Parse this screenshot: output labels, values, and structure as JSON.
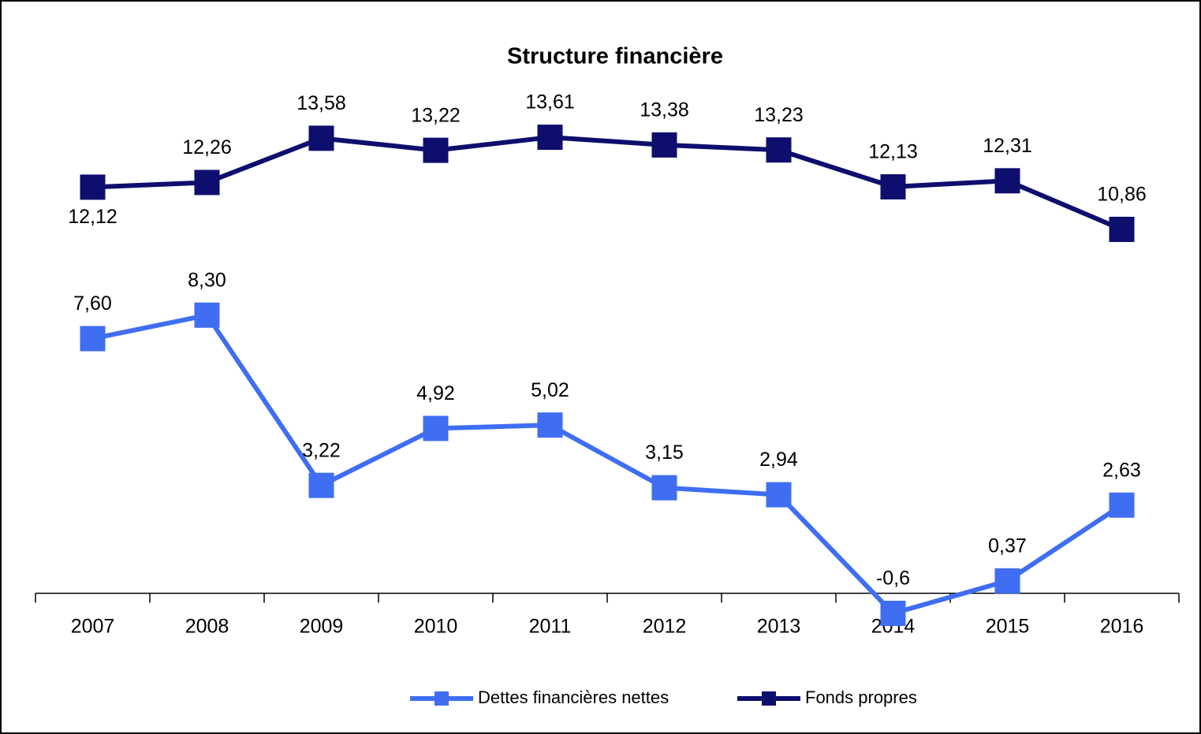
{
  "chart_data": {
    "type": "line",
    "title": "Structure financière",
    "categories": [
      "2007",
      "2008",
      "2009",
      "2010",
      "2011",
      "2012",
      "2013",
      "2014",
      "2015",
      "2016"
    ],
    "series": [
      {
        "name": "Dettes financières nettes",
        "color": "#3f6ef2",
        "values": [
          7.6,
          8.3,
          3.22,
          4.92,
          5.02,
          3.15,
          2.94,
          -0.6,
          0.37,
          2.63
        ],
        "value_labels": [
          "7,60",
          "8,30",
          "3,22",
          "4,92",
          "5,02",
          "3,15",
          "2,94",
          "-0,6",
          "0,37",
          "2,63"
        ]
      },
      {
        "name": "Fonds propres",
        "color": "#0e0e6e",
        "values": [
          12.12,
          12.26,
          13.58,
          13.22,
          13.61,
          13.38,
          13.23,
          12.13,
          12.31,
          10.86
        ],
        "value_labels": [
          "12,12",
          "12,26",
          "13,58",
          "13,22",
          "13,61",
          "13,38",
          "13,23",
          "12,13",
          "12,31",
          "10,86"
        ]
      }
    ],
    "ylim": [
      -1,
      15
    ],
    "legend": "bottom"
  }
}
